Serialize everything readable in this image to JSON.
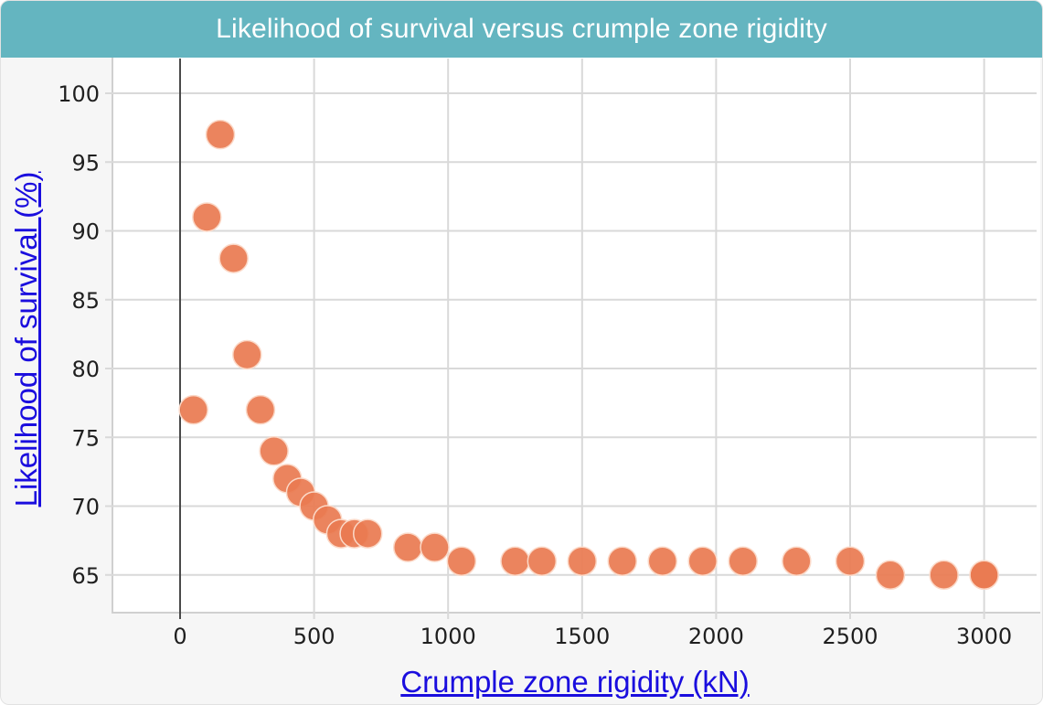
{
  "chart_data": {
    "type": "scatter",
    "title": "Likelihood of survival versus crumple zone rigidity",
    "xlabel": "Crumple zone rigidity (kN)",
    "ylabel": "Likelihood of survival (%)",
    "xlim": [
      -250,
      3150
    ],
    "ylim": [
      62,
      103
    ],
    "x_ticks": [
      0,
      500,
      1000,
      1500,
      2000,
      2500,
      3000
    ],
    "y_ticks": [
      65,
      70,
      75,
      80,
      85,
      90,
      95,
      100
    ],
    "grid": true,
    "legend": null,
    "marker_color": "#ea7b52",
    "points": [
      {
        "x": 50,
        "y": 77
      },
      {
        "x": 100,
        "y": 91
      },
      {
        "x": 150,
        "y": 97
      },
      {
        "x": 200,
        "y": 88
      },
      {
        "x": 250,
        "y": 81
      },
      {
        "x": 300,
        "y": 77
      },
      {
        "x": 350,
        "y": 74
      },
      {
        "x": 400,
        "y": 72
      },
      {
        "x": 450,
        "y": 71
      },
      {
        "x": 500,
        "y": 70
      },
      {
        "x": 550,
        "y": 69
      },
      {
        "x": 600,
        "y": 68
      },
      {
        "x": 650,
        "y": 68
      },
      {
        "x": 700,
        "y": 68
      },
      {
        "x": 850,
        "y": 67
      },
      {
        "x": 950,
        "y": 67
      },
      {
        "x": 1050,
        "y": 66
      },
      {
        "x": 1250,
        "y": 66
      },
      {
        "x": 1350,
        "y": 66
      },
      {
        "x": 1500,
        "y": 66
      },
      {
        "x": 1650,
        "y": 66
      },
      {
        "x": 1800,
        "y": 66
      },
      {
        "x": 1950,
        "y": 66
      },
      {
        "x": 2100,
        "y": 66
      },
      {
        "x": 2300,
        "y": 66
      },
      {
        "x": 2500,
        "y": 66
      },
      {
        "x": 2650,
        "y": 65
      },
      {
        "x": 2850,
        "y": 65
      },
      {
        "x": 3000,
        "y": 65
      },
      {
        "x": 3000,
        "y": 65
      }
    ]
  },
  "header": {
    "title": "Likelihood of survival versus crumple zone rigidity"
  },
  "axes": {
    "x_label": "Crumple zone rigidity (kN)",
    "y_label": "Likelihood of survival (%)"
  },
  "colors": {
    "header_bg": "#64b5c0",
    "marker": "#ea7b52",
    "axis_link": "#1a0dde"
  }
}
